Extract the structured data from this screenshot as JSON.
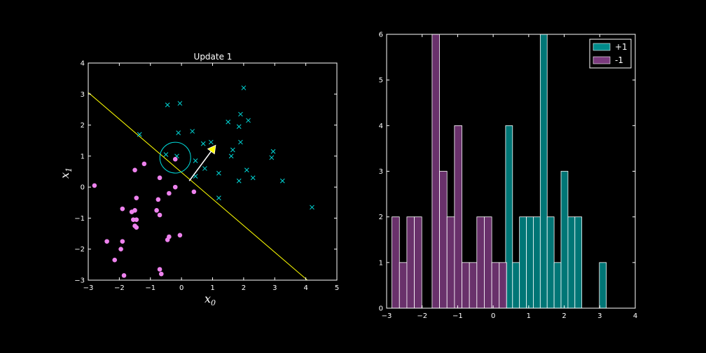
{
  "chart_data": [
    {
      "type": "scatter",
      "title": "Update 1",
      "xlabel": "x",
      "xlabel_sub": "0",
      "ylabel": "x",
      "ylabel_sub": "1",
      "xlim": [
        -3,
        5
      ],
      "ylim": [
        -3,
        4
      ],
      "xticks": [
        -3,
        -2,
        -1,
        0,
        1,
        2,
        3,
        4,
        5
      ],
      "yticks": [
        -3,
        -2,
        -1,
        0,
        1,
        2,
        3,
        4
      ],
      "xtick_labels": [
        "−3",
        "−2",
        "−1",
        "0",
        "1",
        "2",
        "3",
        "4",
        "5"
      ],
      "ytick_labels": [
        "−3",
        "−2",
        "−1",
        "0",
        "1",
        "2",
        "3",
        "4"
      ],
      "colors": {
        "positive": "#00d8d8",
        "negative": "#ee82ee",
        "boundary": "#ffff00",
        "arrow": "#ffff00",
        "highlight": "#00d8d8"
      },
      "positive_points": [
        [
          -0.45,
          2.65
        ],
        [
          -0.05,
          2.7
        ],
        [
          2.0,
          3.2
        ],
        [
          -1.35,
          1.7
        ],
        [
          -0.1,
          1.75
        ],
        [
          0.35,
          1.8
        ],
        [
          -0.5,
          1.05
        ],
        [
          -0.15,
          1.0
        ],
        [
          0.7,
          1.4
        ],
        [
          0.95,
          1.45
        ],
        [
          1.5,
          2.1
        ],
        [
          1.9,
          2.35
        ],
        [
          2.15,
          2.15
        ],
        [
          1.85,
          1.95
        ],
        [
          1.9,
          1.45
        ],
        [
          1.65,
          1.2
        ],
        [
          1.6,
          1.0
        ],
        [
          0.45,
          0.85
        ],
        [
          0.75,
          0.6
        ],
        [
          0.45,
          0.35
        ],
        [
          1.2,
          0.45
        ],
        [
          2.1,
          0.55
        ],
        [
          2.3,
          0.3
        ],
        [
          1.85,
          0.2
        ],
        [
          2.95,
          1.15
        ],
        [
          2.9,
          0.95
        ],
        [
          3.25,
          0.2
        ],
        [
          1.2,
          -0.35
        ],
        [
          4.2,
          -0.65
        ]
      ],
      "negative_points": [
        [
          -2.8,
          0.05
        ],
        [
          -1.5,
          0.55
        ],
        [
          -1.2,
          0.75
        ],
        [
          -0.2,
          0.9
        ],
        [
          -0.7,
          0.3
        ],
        [
          -1.45,
          -0.35
        ],
        [
          -0.2,
          0.0
        ],
        [
          -0.4,
          -0.2
        ],
        [
          0.4,
          -0.15
        ],
        [
          -0.75,
          -0.4
        ],
        [
          -1.9,
          -0.7
        ],
        [
          -1.6,
          -0.8
        ],
        [
          -1.5,
          -0.75
        ],
        [
          -0.8,
          -0.75
        ],
        [
          -0.7,
          -0.9
        ],
        [
          -1.55,
          -1.05
        ],
        [
          -1.45,
          -1.05
        ],
        [
          -1.5,
          -1.25
        ],
        [
          -1.45,
          -1.3
        ],
        [
          -2.4,
          -1.75
        ],
        [
          -1.9,
          -1.75
        ],
        [
          -1.95,
          -2.0
        ],
        [
          -2.15,
          -2.35
        ],
        [
          -0.4,
          -1.6
        ],
        [
          -0.45,
          -1.7
        ],
        [
          -0.05,
          -1.55
        ],
        [
          -0.7,
          -2.65
        ],
        [
          -0.65,
          -2.8
        ],
        [
          -1.85,
          -2.85
        ]
      ],
      "highlight_point": [
        -0.2,
        0.95
      ],
      "boundary_line": [
        [
          -3,
          3.05
        ],
        [
          4.05,
          -3.0
        ]
      ],
      "weight_arrow": {
        "from": [
          0.25,
          0.2
        ],
        "to": [
          1.1,
          1.35
        ]
      }
    },
    {
      "type": "histogram",
      "xlim": [
        -3,
        4
      ],
      "ylim": [
        0,
        6
      ],
      "xticks": [
        -3,
        -2,
        -1,
        0,
        1,
        2,
        3,
        4
      ],
      "yticks": [
        0,
        1,
        2,
        3,
        4,
        5,
        6
      ],
      "xtick_labels": [
        "−3",
        "−2",
        "−1",
        "0",
        "1",
        "2",
        "3",
        "4"
      ],
      "ytick_labels": [
        "0",
        "1",
        "2",
        "3",
        "4",
        "5",
        "6"
      ],
      "legend": {
        "location": "upper-right",
        "entries": [
          "+1",
          "-1"
        ]
      },
      "colors": {
        "+1": "#008b8b",
        "-1": "#7b3a7e",
        "edge": "#ffffff"
      },
      "series": [
        {
          "name": "+1",
          "bin_width": 0.195,
          "bins": [
            {
              "x": 0.35,
              "count": 4
            },
            {
              "x": 0.545,
              "count": 1
            },
            {
              "x": 0.74,
              "count": 2
            },
            {
              "x": 0.935,
              "count": 2
            },
            {
              "x": 1.13,
              "count": 2
            },
            {
              "x": 1.325,
              "count": 6
            },
            {
              "x": 1.52,
              "count": 2
            },
            {
              "x": 1.715,
              "count": 1
            },
            {
              "x": 1.91,
              "count": 3
            },
            {
              "x": 2.105,
              "count": 2
            },
            {
              "x": 2.3,
              "count": 2
            },
            {
              "x": 2.99,
              "count": 1
            }
          ]
        },
        {
          "name": "-1",
          "bin_width": 0.21,
          "bins": [
            {
              "x": -2.85,
              "count": 2
            },
            {
              "x": -2.64,
              "count": 1
            },
            {
              "x": -2.43,
              "count": 2
            },
            {
              "x": -2.22,
              "count": 2
            },
            {
              "x": -1.72,
              "count": 6
            },
            {
              "x": -1.51,
              "count": 3
            },
            {
              "x": -1.3,
              "count": 2
            },
            {
              "x": -1.09,
              "count": 4
            },
            {
              "x": -0.88,
              "count": 1
            },
            {
              "x": -0.67,
              "count": 1
            },
            {
              "x": -0.46,
              "count": 2
            },
            {
              "x": -0.25,
              "count": 2
            },
            {
              "x": -0.04,
              "count": 1
            },
            {
              "x": 0.17,
              "count": 1
            }
          ]
        }
      ]
    }
  ]
}
